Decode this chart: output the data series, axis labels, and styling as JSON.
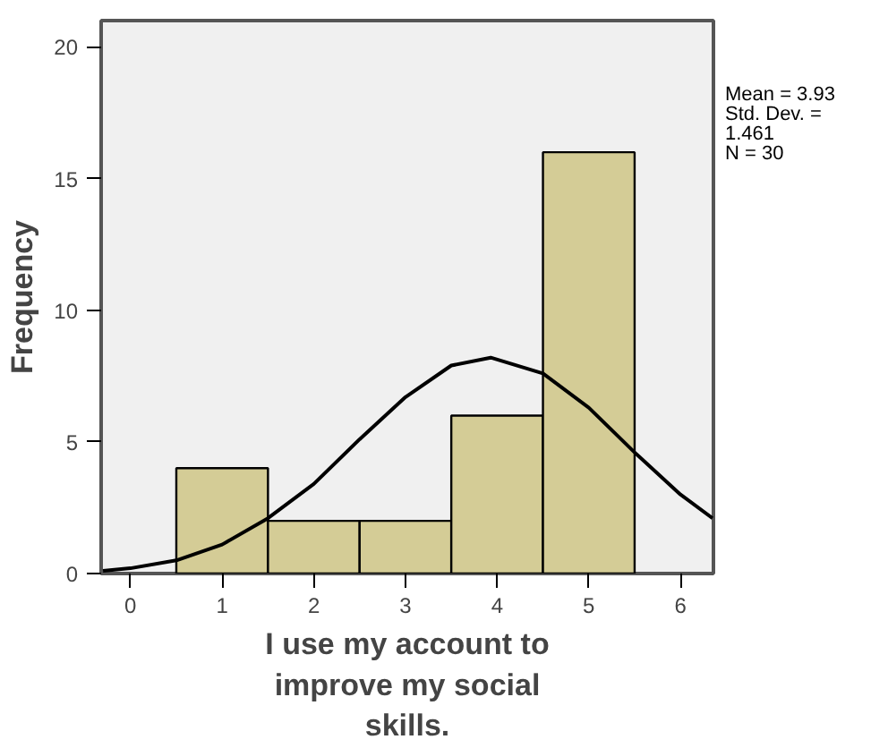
{
  "chart_data": {
    "type": "histogram",
    "xlabel": "I use my account to improve my social skills.",
    "ylabel": "Frequency",
    "bins": [
      0.5,
      1.5,
      2.5,
      3.5,
      4.5,
      5.5
    ],
    "values": [
      4,
      2,
      2,
      6,
      16
    ],
    "color": "#d4cc96",
    "series": [
      {
        "type": "line",
        "color": "#000000",
        "x": [
          -0.3,
          0,
          0.5,
          1,
          1.5,
          2,
          2.5,
          3,
          3.5,
          3.93,
          4.5,
          5,
          5.5,
          6,
          6.35
        ],
        "values": [
          0.1,
          0.2,
          0.5,
          1.1,
          2.1,
          3.4,
          5.1,
          6.7,
          7.9,
          8.2,
          7.6,
          6.3,
          4.6,
          3.0,
          2.1
        ]
      }
    ],
    "xlim": [
      -0.32,
      6.36
    ],
    "ylim": [
      0,
      21
    ],
    "xticks": [
      0,
      1,
      2,
      3,
      4,
      5,
      6
    ],
    "yticks": [
      0,
      5,
      10,
      15,
      20
    ],
    "grid": false,
    "annotations": [
      "Mean = 3.93",
      "Std. Dev. = 1.461",
      "N = 30"
    ]
  }
}
